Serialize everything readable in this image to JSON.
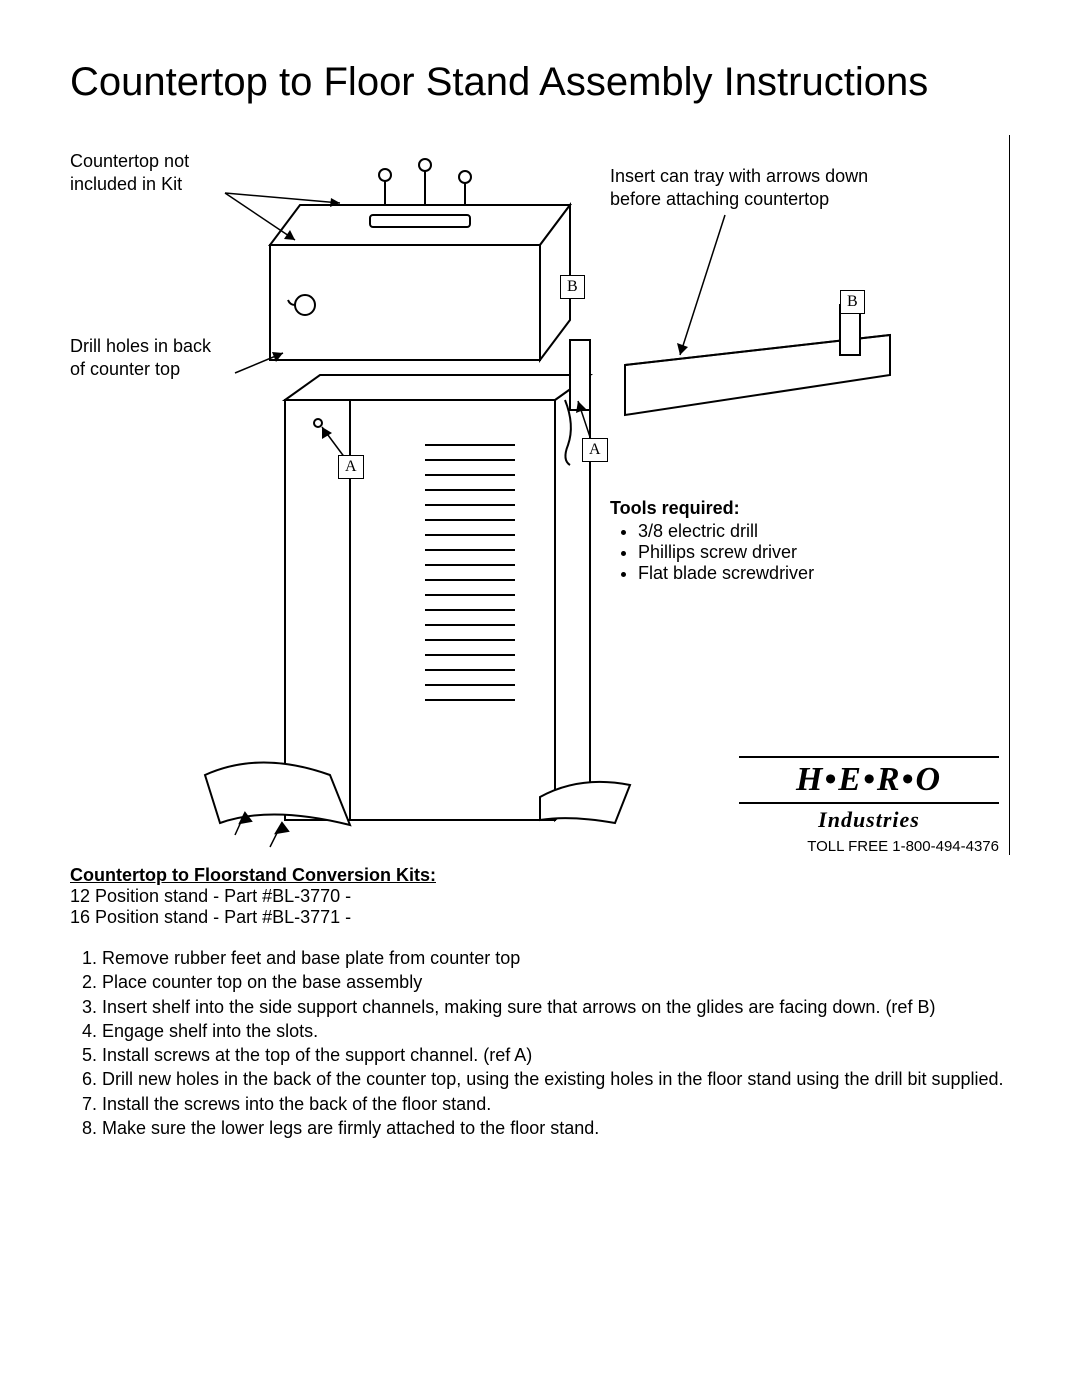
{
  "title": "Countertop to Floor Stand Assembly Instructions",
  "callouts": {
    "countertop_not_included": "Countertop not\nincluded in Kit",
    "drill_holes": "Drill holes in back\nof counter top",
    "insert_tray": "Insert can tray with arrows down\nbefore attaching countertop"
  },
  "refs": {
    "A": "A",
    "B": "B"
  },
  "tools": {
    "title": "Tools required:",
    "items": [
      "3/8 electric drill",
      "Phillips screw driver",
      "Flat blade screwdriver"
    ]
  },
  "logo": {
    "main": "H•E•R•O",
    "sub": "Industries",
    "toll": "TOLL FREE 1-800-494-4376"
  },
  "kits": {
    "title": "Countertop to Floorstand Conversion Kits:",
    "lines": [
      "12 Position stand - Part #BL-3770  -",
      "16 Position stand - Part #BL-3771  -"
    ]
  },
  "steps": [
    "Remove rubber feet and base plate from counter top",
    "Place counter top on the base assembly",
    "Insert shelf into the side support channels, making sure that arrows on the glides are facing down. (ref B)",
    "Engage shelf into the slots.",
    "Install screws at the top of the support channel. (ref A)",
    "Drill new holes in the back of the counter top, using the existing holes in the floor stand using the drill bit supplied.",
    "Install the screws into the back of the floor stand.",
    "Make sure the lower legs are firmly attached to the floor stand."
  ],
  "diagram": {
    "stroke": "#000000",
    "stroke_width": 2,
    "background": "#ffffff"
  }
}
